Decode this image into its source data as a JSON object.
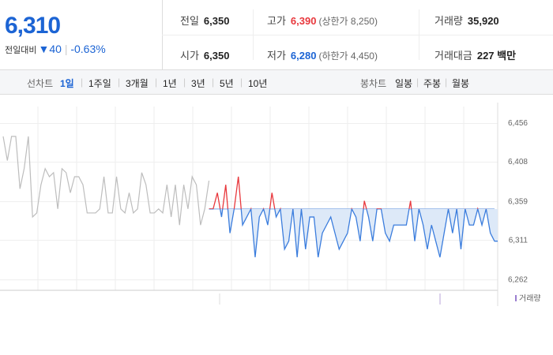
{
  "summary": {
    "price": "6,310",
    "change_label": "전일대비",
    "change": "▼40",
    "change_rate": "-0.63%"
  },
  "quote": {
    "rows": [
      [
        {
          "label": "전일",
          "value": "6,350"
        },
        {
          "label": "고가",
          "value": "6,390",
          "note": "(상한가 8,250)"
        },
        {
          "label": "거래량",
          "value": "35,920"
        }
      ],
      [
        {
          "label": "시가",
          "value": "6,350"
        },
        {
          "label": "저가",
          "value": "6,280",
          "note": "(하한가 4,450)"
        },
        {
          "label": "거래대금",
          "value": "227 백만"
        }
      ]
    ]
  },
  "tabs": {
    "line_label": "선차트",
    "line": [
      "1일",
      "1주일",
      "3개월",
      "1년",
      "3년",
      "5년",
      "10년"
    ],
    "candle_label": "봉차트",
    "candle": [
      "일봉",
      "주봉",
      "월봉"
    ]
  },
  "chart_data": {
    "type": "line",
    "baseline": 6350,
    "up_color": "#e8383d",
    "down_color": "#3b7ddd",
    "fill_color": "#dde9f8",
    "ylim": [
      6249,
      6482
    ],
    "yticks": [
      {
        "value": 6456,
        "label": "6,456"
      },
      {
        "value": 6408,
        "label": "6,408"
      },
      {
        "value": 6359,
        "label": "6,359"
      },
      {
        "value": 6311,
        "label": "6,311"
      },
      {
        "value": 6262,
        "label": "6,262"
      }
    ],
    "volume_label": "거래량",
    "series": [
      {
        "color": "#bdbdbd",
        "values": [
          6440,
          6410,
          6440,
          6440,
          6375,
          6400,
          6440,
          6340,
          6345,
          6380,
          6400,
          6390,
          6395,
          6350,
          6400,
          6395,
          6370,
          6390,
          6390,
          6380,
          6345,
          6345,
          6345,
          6350,
          6390,
          6345,
          6345,
          6390,
          6350,
          6345,
          6370,
          6345,
          6350,
          6395,
          6380,
          6345,
          6345,
          6350,
          6345,
          6380,
          6340,
          6380,
          6330,
          6380,
          6350,
          6390,
          6380,
          6330,
          6350,
          6385,
          null,
          null,
          null,
          null,
          null,
          null,
          null,
          null,
          null,
          null,
          null,
          null,
          null,
          null,
          null,
          null,
          null,
          null,
          null,
          null,
          null,
          null,
          null,
          null,
          null,
          null,
          null,
          null,
          null,
          null,
          null,
          null,
          null,
          null,
          null,
          null,
          null,
          null,
          null,
          null,
          null,
          null,
          null,
          null,
          null,
          null,
          null,
          null,
          null,
          null,
          null,
          null,
          null,
          null,
          null,
          null,
          null,
          null,
          null,
          null,
          null,
          null,
          null,
          null,
          null,
          null,
          null,
          null
        ]
      },
      {
        "color": "#3b7ddd",
        "values": [
          null,
          null,
          null,
          null,
          null,
          null,
          null,
          null,
          null,
          null,
          null,
          null,
          null,
          null,
          null,
          null,
          null,
          null,
          null,
          null,
          null,
          null,
          null,
          null,
          null,
          null,
          null,
          null,
          null,
          null,
          null,
          null,
          null,
          null,
          null,
          null,
          null,
          null,
          null,
          null,
          null,
          null,
          null,
          null,
          null,
          null,
          null,
          null,
          null,
          6350,
          6350,
          6370,
          6340,
          6380,
          6320,
          6350,
          6390,
          6330,
          6340,
          6350,
          6290,
          6340,
          6350,
          6330,
          6370,
          6340,
          6350,
          6300,
          6310,
          6350,
          6290,
          6350,
          6300,
          6340,
          6340,
          6290,
          6320,
          6330,
          6340,
          6320,
          6300,
          6310,
          6320,
          6350,
          6340,
          6310,
          6360,
          6340,
          6310,
          6350,
          6350,
          6320,
          6310,
          6330,
          6330,
          6330,
          6330,
          6360,
          6310,
          6350,
          6330,
          6300,
          6330,
          6310,
          6290,
          6320,
          6350,
          6320,
          6350,
          6300,
          6350,
          6330,
          6330,
          6350,
          6330,
          6350,
          6320,
          6310,
          6310
        ]
      }
    ]
  }
}
